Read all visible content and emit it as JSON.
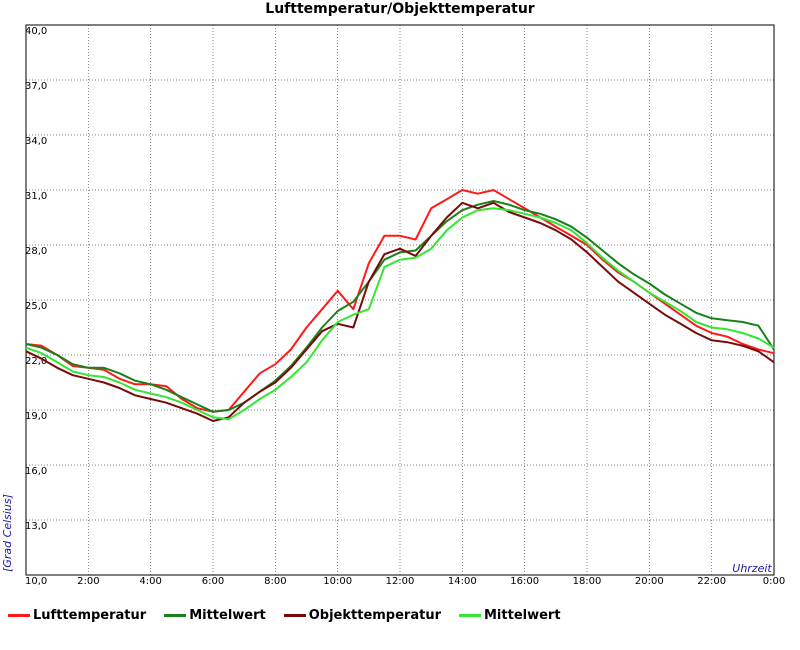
{
  "chart_data": {
    "type": "line",
    "title": "Lufttemperatur/Objekttemperatur",
    "xlabel": "Uhrzeit",
    "ylabel": "[Grad Celsius]",
    "xlim": [
      0,
      24
    ],
    "ylim": [
      10,
      40
    ],
    "x_ticks": [
      "10,0",
      "2:00",
      "4:00",
      "6:00",
      "8:00",
      "10:00",
      "12:00",
      "14:00",
      "16:00",
      "18:00",
      "20:00",
      "22:00",
      "0:00"
    ],
    "y_ticks": [
      "10,0",
      "13,0",
      "16,0",
      "19,0",
      "22,0",
      "25,0",
      "28,0",
      "31,0",
      "34,0",
      "37,0",
      "40,0"
    ],
    "grid": true,
    "legend_position": "bottom",
    "x_hours": [
      0,
      0.5,
      1,
      1.5,
      2,
      2.5,
      3,
      3.5,
      4,
      4.5,
      5,
      5.5,
      6,
      6.5,
      7,
      7.5,
      8,
      8.5,
      9,
      9.5,
      10,
      10.5,
      11,
      11.5,
      12,
      12.5,
      13,
      13.5,
      14,
      14.5,
      15,
      15.5,
      16,
      16.5,
      17,
      17.5,
      18,
      18.5,
      19,
      19.5,
      20,
      20.5,
      21,
      21.5,
      22,
      22.5,
      23,
      23.5,
      24
    ],
    "series": [
      {
        "name": "Lufttemperatur",
        "color": "#ff1a1a",
        "values": [
          22.6,
          22.5,
          22.0,
          21.4,
          21.3,
          21.2,
          20.7,
          20.4,
          20.4,
          20.3,
          19.6,
          19.1,
          18.9,
          19.0,
          20.0,
          21.0,
          21.5,
          22.3,
          23.5,
          24.5,
          25.5,
          24.5,
          27.0,
          28.5,
          28.5,
          28.3,
          30.0,
          30.5,
          31.0,
          30.8,
          31.0,
          30.5,
          30.0,
          29.5,
          29.0,
          28.5,
          28.0,
          27.2,
          26.5,
          26.0,
          25.4,
          24.8,
          24.2,
          23.6,
          23.2,
          23.0,
          22.6,
          22.3,
          22.1
        ]
      },
      {
        "name": "Mittelwert",
        "color": "#1a801a",
        "values": [
          22.6,
          22.4,
          22.0,
          21.5,
          21.3,
          21.3,
          21.0,
          20.6,
          20.4,
          20.1,
          19.7,
          19.3,
          18.9,
          19.0,
          19.4,
          20.0,
          20.6,
          21.4,
          22.4,
          23.5,
          24.4,
          24.9,
          26.0,
          27.2,
          27.6,
          27.7,
          28.5,
          29.3,
          29.9,
          30.2,
          30.4,
          30.2,
          29.9,
          29.7,
          29.4,
          29.0,
          28.4,
          27.7,
          27.0,
          26.4,
          25.9,
          25.3,
          24.8,
          24.3,
          24.0,
          23.9,
          23.8,
          23.6,
          22.3
        ]
      },
      {
        "name": "Objekttemperatur",
        "color": "#7a0a0a",
        "values": [
          22.2,
          21.8,
          21.3,
          20.9,
          20.7,
          20.5,
          20.2,
          19.8,
          19.6,
          19.4,
          19.1,
          18.8,
          18.4,
          18.6,
          19.4,
          20.0,
          20.5,
          21.3,
          22.3,
          23.3,
          23.7,
          23.5,
          26.0,
          27.5,
          27.8,
          27.4,
          28.5,
          29.5,
          30.3,
          30.0,
          30.3,
          29.8,
          29.5,
          29.2,
          28.8,
          28.3,
          27.6,
          26.8,
          26.0,
          25.4,
          24.8,
          24.2,
          23.7,
          23.2,
          22.8,
          22.7,
          22.5,
          22.2,
          21.6
        ]
      },
      {
        "name": "Mittelwert",
        "color": "#33e633",
        "values": [
          22.4,
          22.1,
          21.6,
          21.1,
          20.9,
          20.8,
          20.5,
          20.1,
          19.9,
          19.7,
          19.4,
          19.0,
          18.6,
          18.5,
          19.0,
          19.6,
          20.1,
          20.8,
          21.6,
          22.8,
          23.8,
          24.2,
          24.5,
          26.8,
          27.2,
          27.3,
          27.8,
          28.8,
          29.5,
          29.9,
          30.0,
          29.9,
          29.7,
          29.5,
          29.2,
          28.8,
          28.1,
          27.3,
          26.6,
          26.0,
          25.4,
          24.9,
          24.4,
          23.8,
          23.5,
          23.4,
          23.2,
          22.9,
          22.4
        ]
      }
    ]
  },
  "legend": {
    "items": [
      {
        "label": "Lufttemperatur",
        "color": "#ff1a1a"
      },
      {
        "label": "Mittelwert",
        "color": "#1a801a"
      },
      {
        "label": "Objekttemperatur",
        "color": "#7a0a0a"
      },
      {
        "label": "Mittelwert",
        "color": "#33e633"
      }
    ]
  }
}
